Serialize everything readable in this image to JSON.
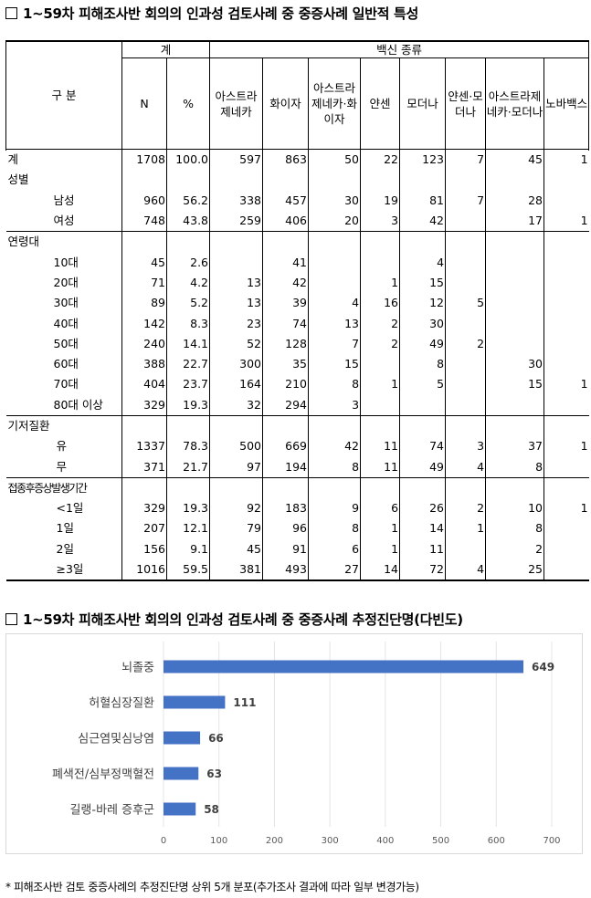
{
  "section1": {
    "title": "1~59차 피해조사반 회의의 인과성 검토사례 중 중증사례 일반적 특성"
  },
  "table": {
    "header": {
      "category": "구 분",
      "total_group": "계",
      "n": "N",
      "pct": "%",
      "vaccine_group": "백신 종류",
      "vaccines": [
        "아스트라제네카",
        "화이자",
        "아스트라제네카·화이자",
        "얀센",
        "모더나",
        "얀센·모더나",
        "아스트라제네카·모더나",
        "노바백스"
      ]
    },
    "groups": [
      {
        "rows": [
          {
            "label": "계",
            "level": 0,
            "n": "1708",
            "pct": "100.0",
            "v": [
              "597",
              "863",
              "50",
              "22",
              "123",
              "7",
              "45",
              "1"
            ]
          },
          {
            "label": "성별",
            "level": 0,
            "n": "",
            "pct": "",
            "v": [
              "",
              "",
              "",
              "",
              "",
              "",
              "",
              ""
            ]
          },
          {
            "label": "남성",
            "level": 1,
            "n": "960",
            "pct": "56.2",
            "v": [
              "338",
              "457",
              "30",
              "19",
              "81",
              "7",
              "28",
              ""
            ]
          },
          {
            "label": "여성",
            "level": 1,
            "n": "748",
            "pct": "43.8",
            "v": [
              "259",
              "406",
              "20",
              "3",
              "42",
              "",
              "17",
              "1"
            ]
          }
        ]
      },
      {
        "rows": [
          {
            "label": "연령대",
            "level": 0,
            "n": "",
            "pct": "",
            "v": [
              "",
              "",
              "",
              "",
              "",
              "",
              "",
              ""
            ]
          },
          {
            "label": "10대",
            "level": 1,
            "n": "45",
            "pct": "2.6",
            "v": [
              "",
              "41",
              "",
              "",
              "4",
              "",
              "",
              ""
            ]
          },
          {
            "label": "20대",
            "level": 1,
            "n": "71",
            "pct": "4.2",
            "v": [
              "13",
              "42",
              "",
              "1",
              "15",
              "",
              "",
              ""
            ]
          },
          {
            "label": "30대",
            "level": 1,
            "n": "89",
            "pct": "5.2",
            "v": [
              "13",
              "39",
              "4",
              "16",
              "12",
              "5",
              "",
              ""
            ]
          },
          {
            "label": "40대",
            "level": 1,
            "n": "142",
            "pct": "8.3",
            "v": [
              "23",
              "74",
              "13",
              "2",
              "30",
              "",
              "",
              ""
            ]
          },
          {
            "label": "50대",
            "level": 1,
            "n": "240",
            "pct": "14.1",
            "v": [
              "52",
              "128",
              "7",
              "2",
              "49",
              "2",
              "",
              ""
            ]
          },
          {
            "label": "60대",
            "level": 1,
            "n": "388",
            "pct": "22.7",
            "v": [
              "300",
              "35",
              "15",
              "",
              "8",
              "",
              "30",
              ""
            ]
          },
          {
            "label": "70대",
            "level": 1,
            "n": "404",
            "pct": "23.7",
            "v": [
              "164",
              "210",
              "8",
              "1",
              "5",
              "",
              "15",
              "1"
            ]
          },
          {
            "label": "80대 이상",
            "level": 1,
            "n": "329",
            "pct": "19.3",
            "v": [
              "32",
              "294",
              "3",
              "",
              "",
              "",
              "",
              ""
            ]
          }
        ]
      },
      {
        "rows": [
          {
            "label": "기저질환",
            "level": 0,
            "n": "",
            "pct": "",
            "v": [
              "",
              "",
              "",
              "",
              "",
              "",
              "",
              ""
            ]
          },
          {
            "label": "유",
            "level": 2,
            "n": "1337",
            "pct": "78.3",
            "v": [
              "500",
              "669",
              "42",
              "11",
              "74",
              "3",
              "37",
              "1"
            ]
          },
          {
            "label": "무",
            "level": 2,
            "n": "371",
            "pct": "21.7",
            "v": [
              "97",
              "194",
              "8",
              "11",
              "49",
              "4",
              "8",
              ""
            ]
          }
        ]
      },
      {
        "rows": [
          {
            "label": "접종후증상발생기간",
            "level": 0,
            "n": "",
            "pct": "",
            "v": [
              "",
              "",
              "",
              "",
              "",
              "",
              "",
              ""
            ]
          },
          {
            "label": "<1일",
            "level": 2,
            "n": "329",
            "pct": "19.3",
            "v": [
              "92",
              "183",
              "9",
              "6",
              "26",
              "2",
              "10",
              "1"
            ]
          },
          {
            "label": "1일",
            "level": 2,
            "n": "207",
            "pct": "12.1",
            "v": [
              "79",
              "96",
              "8",
              "1",
              "14",
              "1",
              "8",
              ""
            ]
          },
          {
            "label": "2일",
            "level": 2,
            "n": "156",
            "pct": "9.1",
            "v": [
              "45",
              "91",
              "6",
              "1",
              "11",
              "",
              "2",
              ""
            ]
          },
          {
            "label": "≥3일",
            "level": 2,
            "n": "1016",
            "pct": "59.5",
            "v": [
              "381",
              "493",
              "27",
              "14",
              "72",
              "4",
              "25",
              ""
            ]
          }
        ]
      }
    ]
  },
  "section2": {
    "title": "1~59차 피해조사반 회의의 인과성 검토사례 중 중증사례 추정진단명(다빈도)"
  },
  "chart_data": {
    "type": "bar",
    "orientation": "horizontal",
    "categories": [
      "뇌졸중",
      "허혈심장질환",
      "심근염및심낭염",
      "폐색전/심부정맥혈전",
      "길랭-바레 증후군"
    ],
    "values": [
      649,
      111,
      66,
      63,
      58
    ],
    "xlim": [
      0,
      700
    ],
    "xticks": [
      0,
      100,
      200,
      300,
      400,
      500,
      600,
      700
    ],
    "grid": true,
    "bar_color": "#4472c4",
    "data_labels": true
  },
  "footnote": "* 피해조사반 검토 중증사례의 추정진단명 상위 5개 분포(추가조사 결과에 따라 일부 변경가능)"
}
